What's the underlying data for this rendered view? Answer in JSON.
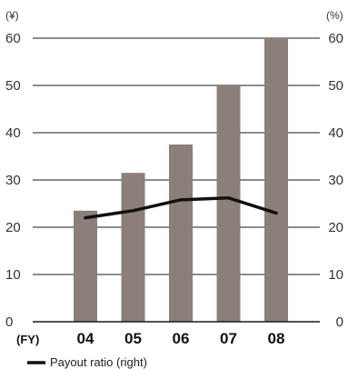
{
  "chart_data": {
    "type": "bar",
    "categories": [
      "04",
      "05",
      "06",
      "07",
      "08"
    ],
    "x_axis_label": "(FY)",
    "left_axis": {
      "unit": "(¥)",
      "ylim": [
        0,
        60
      ],
      "ticks": [
        0,
        10,
        20,
        30,
        40,
        50,
        60
      ]
    },
    "right_axis": {
      "unit": "(%)",
      "ylim": [
        0,
        60
      ],
      "ticks": [
        0,
        10,
        20,
        30,
        40,
        50,
        60
      ]
    },
    "series": [
      {
        "type": "bar",
        "axis": "left",
        "values": [
          23.5,
          31.5,
          37.5,
          50,
          60
        ],
        "color": "#8c7e78"
      },
      {
        "type": "line",
        "axis": "right",
        "name": "Payout ratio (right)",
        "values": [
          22,
          23.5,
          25.8,
          26.2,
          23
        ],
        "color": "#111111"
      }
    ],
    "grid": true,
    "legend": {
      "position": "bottom-left",
      "entries": [
        "Payout ratio (right)"
      ]
    }
  }
}
